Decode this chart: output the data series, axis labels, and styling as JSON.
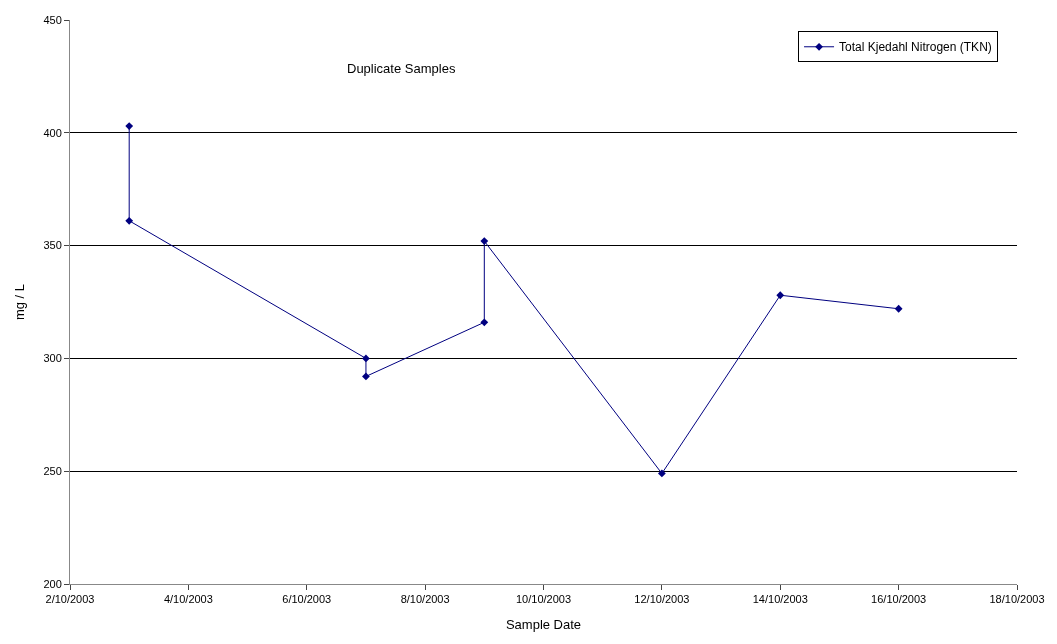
{
  "chart_data": {
    "type": "line",
    "xlabel": "Sample Date",
    "ylabel": "mg / L",
    "x": [
      "2003-10-03",
      "2003-10-03",
      "2003-10-07",
      "2003-10-07",
      "2003-10-09",
      "2003-10-09",
      "2003-10-12",
      "2003-10-14",
      "2003-10-16"
    ],
    "series": [
      {
        "name": "Total Kjedahl Nitrogen (TKN)",
        "color": "#000080",
        "values": [
          403,
          361,
          300,
          292,
          316,
          352,
          249,
          328,
          322
        ]
      }
    ],
    "xlim": [
      "2003-10-02",
      "2003-10-18"
    ],
    "xticks": [
      {
        "value": "2003-10-02",
        "label": "2/10/2003"
      },
      {
        "value": "2003-10-04",
        "label": "4/10/2003"
      },
      {
        "value": "2003-10-06",
        "label": "6/10/2003"
      },
      {
        "value": "2003-10-08",
        "label": "8/10/2003"
      },
      {
        "value": "2003-10-10",
        "label": "10/10/2003"
      },
      {
        "value": "2003-10-12",
        "label": "12/10/2003"
      },
      {
        "value": "2003-10-14",
        "label": "14/10/2003"
      },
      {
        "value": "2003-10-16",
        "label": "16/10/2003"
      },
      {
        "value": "2003-10-18",
        "label": "18/10/2003"
      }
    ],
    "ylim": [
      200,
      450
    ],
    "yticks": [
      200,
      250,
      300,
      350,
      400,
      450
    ],
    "annotations": [
      "Duplicate Samples"
    ],
    "grid": "y",
    "legend": "top right",
    "marker": "diamond",
    "line_style": "solid"
  }
}
